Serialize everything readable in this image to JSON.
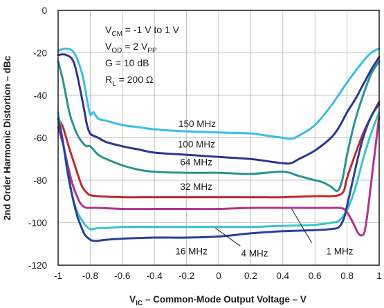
{
  "chart_data": {
    "type": "line",
    "xlim": [
      -1,
      1
    ],
    "ylim": [
      -120,
      0
    ],
    "x_ticks": [
      -1,
      -0.8,
      -0.6,
      -0.4,
      -0.2,
      0,
      0.2,
      0.4,
      0.6,
      0.8,
      1
    ],
    "y_ticks": [
      0,
      -20,
      -40,
      -60,
      -80,
      -100,
      -120
    ],
    "x_tick_labels": [
      "-1",
      "-0.8",
      "-0.6",
      "-0.4",
      "-0.2",
      "0",
      "0.2",
      "0.4",
      "0.6",
      "0.8",
      "1"
    ],
    "y_tick_labels": [
      "0",
      "-20",
      "-40",
      "-60",
      "-80",
      "-100",
      "-120"
    ],
    "xlabel": {
      "prefix": "V",
      "sub": "IC",
      "rest": " – Common-Mode Output Voltage – V"
    },
    "ylabel": "2nd Order Harmonic Distortion – dBc",
    "grid": true,
    "conditions": [
      {
        "main": "V",
        "sub": "CM",
        "rest": " = -1 V to 1 V"
      },
      {
        "main": "V",
        "sub": "OD",
        "rest": " = 2 V",
        "sub2": "PP"
      },
      {
        "main": "G = 10 dB",
        "sub": "",
        "rest": ""
      },
      {
        "main": "R",
        "sub": "L",
        "rest": " = 200 Ω"
      }
    ],
    "series": [
      {
        "name": "150 MHz",
        "color": "#39bde8",
        "x": [
          -1,
          -0.95,
          -0.9,
          -0.85,
          -0.82,
          -0.8,
          -0.78,
          -0.75,
          -0.7,
          -0.6,
          -0.5,
          -0.4,
          -0.2,
          0,
          0.2,
          0.3,
          0.4,
          0.45,
          0.5,
          0.6,
          0.7,
          0.8,
          0.9,
          0.95,
          1
        ],
        "y": [
          -19,
          -18,
          -20,
          -30,
          -42,
          -49,
          -48,
          -51,
          -52,
          -54,
          -55,
          -56,
          -57,
          -57.5,
          -58,
          -59,
          -60,
          -60.5,
          -59,
          -54,
          -45,
          -34,
          -24,
          -20,
          -18
        ]
      },
      {
        "name": "100 MHz",
        "color": "#2c3592",
        "x": [
          -1,
          -0.95,
          -0.9,
          -0.85,
          -0.82,
          -0.8,
          -0.78,
          -0.75,
          -0.7,
          -0.6,
          -0.5,
          -0.4,
          -0.2,
          0,
          0.2,
          0.3,
          0.4,
          0.45,
          0.5,
          0.6,
          0.7,
          0.75,
          0.8,
          0.85,
          0.9,
          0.95,
          1
        ],
        "y": [
          -21,
          -21,
          -25,
          -42,
          -54,
          -58,
          -59,
          -60,
          -62,
          -64,
          -65.5,
          -67,
          -68,
          -69,
          -70,
          -71,
          -72,
          -72,
          -70,
          -66,
          -60,
          -55,
          -48,
          -42,
          -35,
          -28,
          -22
        ]
      },
      {
        "name": "64 MHz",
        "color": "#2a9490",
        "x": [
          -1,
          -0.97,
          -0.93,
          -0.9,
          -0.87,
          -0.84,
          -0.82,
          -0.8,
          -0.75,
          -0.7,
          -0.6,
          -0.5,
          -0.4,
          -0.2,
          0,
          0.2,
          0.4,
          0.5,
          0.6,
          0.65,
          0.7,
          0.74,
          0.77,
          0.8,
          0.85,
          0.9,
          0.95,
          1
        ],
        "y": [
          -24,
          -33,
          -48,
          -55,
          -60,
          -63,
          -64,
          -64,
          -68,
          -70,
          -73,
          -75,
          -76,
          -76.5,
          -76.5,
          -77,
          -76,
          -78,
          -80,
          -81,
          -83,
          -85,
          -80,
          -68,
          -52,
          -40,
          -30,
          -24
        ]
      },
      {
        "name": "32 MHz",
        "color": "#c0282d",
        "x": [
          -1,
          -0.97,
          -0.93,
          -0.9,
          -0.87,
          -0.85,
          -0.82,
          -0.8,
          -0.75,
          -0.6,
          -0.4,
          -0.2,
          0,
          0.2,
          0.4,
          0.6,
          0.7,
          0.75,
          0.78,
          0.8,
          0.85,
          0.9,
          0.95,
          1
        ],
        "y": [
          -51,
          -55,
          -65,
          -72,
          -79,
          -83,
          -86,
          -87,
          -87.5,
          -88,
          -88,
          -88,
          -88,
          -88,
          -88,
          -87.5,
          -87.5,
          -87,
          -85,
          -79,
          -68,
          -58,
          -50,
          -43
        ]
      },
      {
        "name": "1 MHz",
        "color": "#b5318e",
        "x": [
          -1,
          -0.97,
          -0.94,
          -0.91,
          -0.88,
          -0.86,
          -0.84,
          -0.82,
          -0.8,
          -0.75,
          -0.6,
          -0.4,
          -0.2,
          0,
          0.2,
          0.4,
          0.6,
          0.7,
          0.75,
          0.78,
          0.8,
          0.83,
          0.85,
          0.87,
          0.89,
          0.91,
          0.93,
          0.96,
          1
        ],
        "y": [
          -55,
          -63,
          -73,
          -82,
          -88,
          -91,
          -92.5,
          -93,
          -93,
          -93,
          -93.5,
          -93.5,
          -93.5,
          -93.5,
          -93,
          -93,
          -93,
          -93,
          -93,
          -93.5,
          -95,
          -99,
          -102,
          -105,
          -106,
          -104,
          -94,
          -75,
          -50
        ]
      },
      {
        "name": "4 MHz",
        "color": "#3ac4c6",
        "x": [
          -1,
          -0.97,
          -0.94,
          -0.91,
          -0.88,
          -0.85,
          -0.82,
          -0.8,
          -0.78,
          -0.75,
          -0.7,
          -0.6,
          -0.4,
          -0.2,
          0,
          0.2,
          0.4,
          0.6,
          0.7,
          0.75,
          0.8,
          0.85,
          0.9,
          0.95,
          1
        ],
        "y": [
          -48,
          -62,
          -77,
          -88,
          -95,
          -99,
          -102,
          -103,
          -103,
          -102.5,
          -102.5,
          -102,
          -102,
          -102,
          -102,
          -102,
          -101.5,
          -101,
          -100,
          -99,
          -94,
          -84,
          -70,
          -58,
          -48
        ]
      },
      {
        "name": "16 MHz",
        "color": "#2a3f9b",
        "x": [
          -1,
          -0.97,
          -0.94,
          -0.91,
          -0.88,
          -0.85,
          -0.83,
          -0.8,
          -0.78,
          -0.75,
          -0.7,
          -0.6,
          -0.4,
          -0.2,
          0,
          0.2,
          0.4,
          0.6,
          0.7,
          0.75,
          0.78,
          0.8,
          0.83,
          0.86,
          0.9,
          0.95,
          1
        ],
        "y": [
          -51,
          -62,
          -76,
          -88,
          -97,
          -103,
          -106,
          -108,
          -108.5,
          -108.5,
          -108,
          -107.5,
          -107,
          -107,
          -106.5,
          -105,
          -104,
          -103.5,
          -103,
          -102,
          -98,
          -92,
          -82,
          -72,
          -60,
          -50,
          -44
        ]
      }
    ],
    "annotations": [
      {
        "text": "150 MHz",
        "x": -0.25,
        "y": -55
      },
      {
        "text": "100 MHz",
        "x": -0.255,
        "y": -64.5
      },
      {
        "text": "64 MHz",
        "x": -0.24,
        "y": -73
      },
      {
        "text": "32 MHz",
        "x": -0.24,
        "y": -84.5
      },
      {
        "text": "16 MHz",
        "x": -0.27,
        "y": -115
      },
      {
        "text": "4 MHz",
        "x": 0.14,
        "y": -116
      },
      {
        "text": "1 MHz",
        "x": 0.67,
        "y": -115
      }
    ],
    "leaders": [
      {
        "for": "4 MHz",
        "from": [
          0.135,
          -111
        ],
        "to": [
          -0.02,
          -102.5
        ]
      },
      {
        "for": "1 MHz",
        "from": [
          0.58,
          -109.5
        ],
        "to": [
          0.455,
          -93.5
        ]
      }
    ]
  }
}
